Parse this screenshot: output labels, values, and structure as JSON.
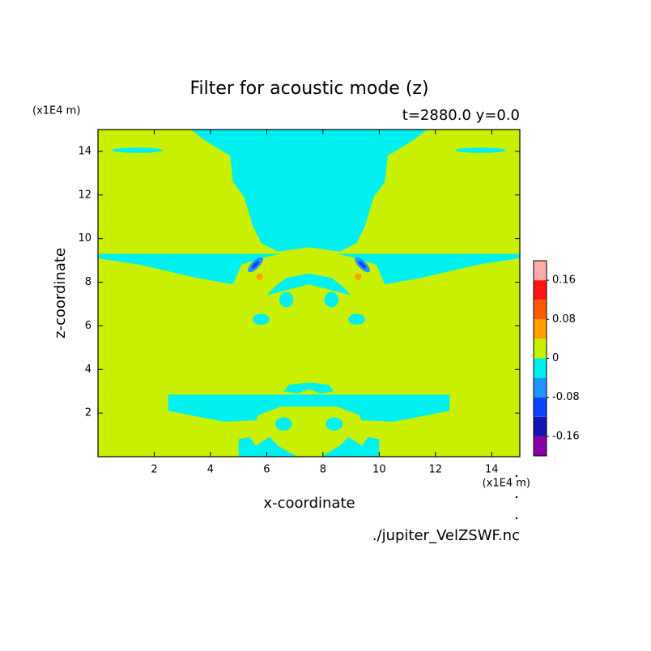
{
  "chart_data": {
    "type": "contour",
    "title": "Filter for acoustic mode (z)",
    "subtitle": "t=2880.0 y=0.0",
    "x_label": "x-coordinate",
    "y_label": "z-coordinate",
    "x_unit": "(x1E4 m)",
    "y_unit": "(x1E4 m)",
    "source": "./jupiter_VelZSWF.nc",
    "xlim": [
      0,
      15
    ],
    "xticks": [
      2,
      4,
      6,
      8,
      10,
      12,
      14
    ],
    "ylim": [
      0,
      15
    ],
    "yticks": [
      2,
      4,
      6,
      8,
      10,
      12,
      14
    ],
    "clim": [
      -0.2,
      0.2
    ],
    "cticks": [
      -0.16,
      -0.08,
      0,
      0.08,
      0.16
    ],
    "colors": [
      "#8c00a8",
      "#1414b4",
      "#0a46ff",
      "#1e96ff",
      "#00f0f0",
      "#c8f000",
      "#ffa000",
      "#ff5a00",
      "#ff1414",
      "#ffaaaa"
    ]
  }
}
